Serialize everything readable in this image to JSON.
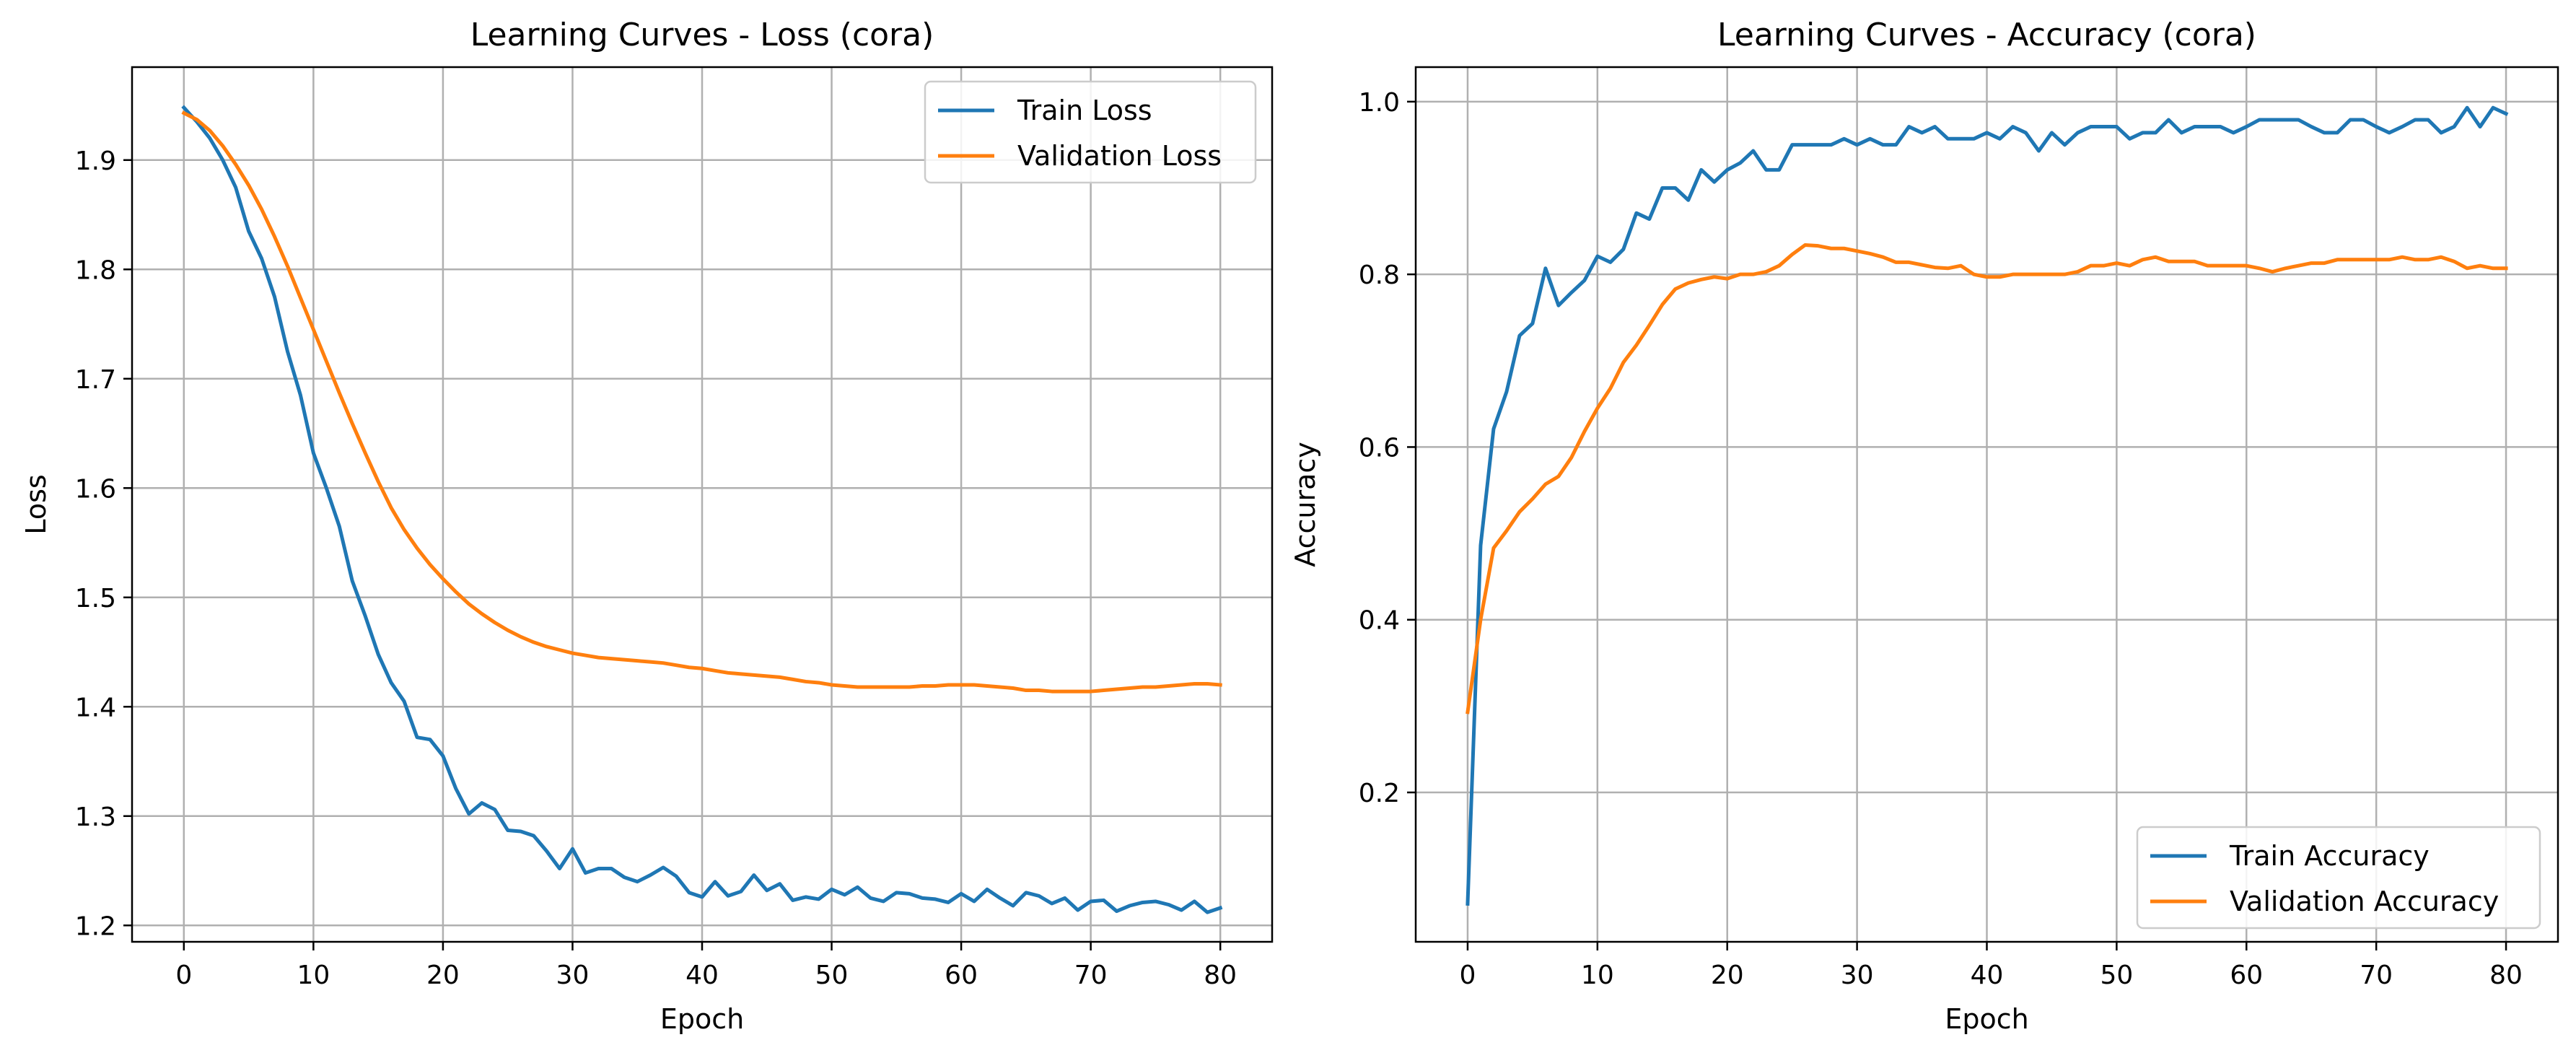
{
  "chart_data": [
    {
      "type": "line",
      "title": "Learning Curves - Loss (cora)",
      "xlabel": "Epoch",
      "ylabel": "Loss",
      "xlim": [
        -4,
        84
      ],
      "ylim": [
        1.185,
        1.985
      ],
      "xticks": [
        0,
        10,
        20,
        30,
        40,
        50,
        60,
        70,
        80
      ],
      "yticks": [
        1.2,
        1.3,
        1.4,
        1.5,
        1.6,
        1.7,
        1.8,
        1.9
      ],
      "ytick_labels": [
        "1.2",
        "1.3",
        "1.4",
        "1.5",
        "1.6",
        "1.7",
        "1.8",
        "1.9"
      ],
      "grid": true,
      "legend_position": "upper right",
      "x": [
        0,
        1,
        2,
        3,
        4,
        5,
        6,
        7,
        8,
        9,
        10,
        11,
        12,
        13,
        14,
        15,
        16,
        17,
        18,
        19,
        20,
        21,
        22,
        23,
        24,
        25,
        26,
        27,
        28,
        29,
        30,
        31,
        32,
        33,
        34,
        35,
        36,
        37,
        38,
        39,
        40,
        41,
        42,
        43,
        44,
        45,
        46,
        47,
        48,
        49,
        50,
        51,
        52,
        53,
        54,
        55,
        56,
        57,
        58,
        59,
        60,
        61,
        62,
        63,
        64,
        65,
        66,
        67,
        68,
        69,
        70,
        71,
        72,
        73,
        74,
        75,
        76,
        77,
        78,
        79,
        80
      ],
      "series": [
        {
          "name": "Train Loss",
          "color": "#1f77b4",
          "values": [
            1.948,
            1.935,
            1.92,
            1.9,
            1.875,
            1.835,
            1.81,
            1.775,
            1.725,
            1.685,
            1.632,
            1.6,
            1.565,
            1.515,
            1.483,
            1.448,
            1.422,
            1.405,
            1.372,
            1.37,
            1.355,
            1.325,
            1.302,
            1.312,
            1.306,
            1.287,
            1.286,
            1.282,
            1.268,
            1.252,
            1.27,
            1.248,
            1.252,
            1.252,
            1.244,
            1.24,
            1.246,
            1.253,
            1.245,
            1.23,
            1.226,
            1.24,
            1.227,
            1.231,
            1.246,
            1.232,
            1.238,
            1.223,
            1.226,
            1.224,
            1.233,
            1.228,
            1.235,
            1.225,
            1.222,
            1.23,
            1.229,
            1.225,
            1.224,
            1.221,
            1.229,
            1.222,
            1.233,
            1.225,
            1.218,
            1.23,
            1.227,
            1.22,
            1.225,
            1.214,
            1.222,
            1.223,
            1.213,
            1.218,
            1.221,
            1.222,
            1.219,
            1.214,
            1.222,
            1.212,
            1.216
          ]
        },
        {
          "name": "Validation Loss",
          "color": "#ff7f0e",
          "values": [
            1.943,
            1.937,
            1.927,
            1.913,
            1.896,
            1.877,
            1.855,
            1.83,
            1.803,
            1.774,
            1.745,
            1.716,
            1.687,
            1.659,
            1.632,
            1.606,
            1.582,
            1.562,
            1.545,
            1.53,
            1.517,
            1.505,
            1.494,
            1.485,
            1.477,
            1.47,
            1.464,
            1.459,
            1.455,
            1.452,
            1.449,
            1.447,
            1.445,
            1.444,
            1.443,
            1.442,
            1.441,
            1.44,
            1.438,
            1.436,
            1.435,
            1.433,
            1.431,
            1.43,
            1.429,
            1.428,
            1.427,
            1.425,
            1.423,
            1.422,
            1.42,
            1.419,
            1.418,
            1.418,
            1.418,
            1.418,
            1.418,
            1.419,
            1.419,
            1.42,
            1.42,
            1.42,
            1.419,
            1.418,
            1.417,
            1.415,
            1.415,
            1.414,
            1.414,
            1.414,
            1.414,
            1.415,
            1.416,
            1.417,
            1.418,
            1.418,
            1.419,
            1.42,
            1.421,
            1.421,
            1.42
          ]
        }
      ]
    },
    {
      "type": "line",
      "title": "Learning Curves - Accuracy (cora)",
      "xlabel": "Epoch",
      "ylabel": "Accuracy",
      "xlim": [
        -4,
        84
      ],
      "ylim": [
        0.027,
        1.04
      ],
      "xticks": [
        0,
        10,
        20,
        30,
        40,
        50,
        60,
        70,
        80
      ],
      "yticks": [
        0.2,
        0.4,
        0.6,
        0.8,
        1.0
      ],
      "ytick_labels": [
        "0.2",
        "0.4",
        "0.6",
        "0.8",
        "1.0"
      ],
      "grid": true,
      "legend_position": "lower right",
      "x": [
        0,
        1,
        2,
        3,
        4,
        5,
        6,
        7,
        8,
        9,
        10,
        11,
        12,
        13,
        14,
        15,
        16,
        17,
        18,
        19,
        20,
        21,
        22,
        23,
        24,
        25,
        26,
        27,
        28,
        29,
        30,
        31,
        32,
        33,
        34,
        35,
        36,
        37,
        38,
        39,
        40,
        41,
        42,
        43,
        44,
        45,
        46,
        47,
        48,
        49,
        50,
        51,
        52,
        53,
        54,
        55,
        56,
        57,
        58,
        59,
        60,
        61,
        62,
        63,
        64,
        65,
        66,
        67,
        68,
        69,
        70,
        71,
        72,
        73,
        74,
        75,
        76,
        77,
        78,
        79,
        80
      ],
      "series": [
        {
          "name": "Train Accuracy",
          "color": "#1f77b4",
          "values": [
            0.071,
            0.486,
            0.621,
            0.664,
            0.729,
            0.743,
            0.807,
            0.764,
            0.779,
            0.793,
            0.821,
            0.814,
            0.829,
            0.871,
            0.864,
            0.9,
            0.9,
            0.886,
            0.921,
            0.907,
            0.921,
            0.929,
            0.943,
            0.921,
            0.921,
            0.95,
            0.95,
            0.95,
            0.95,
            0.957,
            0.95,
            0.957,
            0.95,
            0.95,
            0.971,
            0.964,
            0.971,
            0.957,
            0.957,
            0.957,
            0.964,
            0.957,
            0.971,
            0.964,
            0.943,
            0.964,
            0.95,
            0.964,
            0.971,
            0.971,
            0.971,
            0.957,
            0.964,
            0.964,
            0.979,
            0.964,
            0.971,
            0.971,
            0.971,
            0.964,
            0.971,
            0.979,
            0.979,
            0.979,
            0.979,
            0.971,
            0.964,
            0.964,
            0.979,
            0.979,
            0.971,
            0.964,
            0.971,
            0.979,
            0.979,
            0.964,
            0.971,
            0.993,
            0.971,
            0.993,
            0.986
          ]
        },
        {
          "name": "Validation Accuracy",
          "color": "#ff7f0e",
          "values": [
            0.293,
            0.4,
            0.483,
            0.503,
            0.525,
            0.54,
            0.557,
            0.566,
            0.588,
            0.618,
            0.645,
            0.668,
            0.698,
            0.718,
            0.741,
            0.765,
            0.783,
            0.79,
            0.794,
            0.797,
            0.795,
            0.8,
            0.8,
            0.803,
            0.81,
            0.823,
            0.834,
            0.833,
            0.83,
            0.83,
            0.827,
            0.824,
            0.82,
            0.814,
            0.814,
            0.811,
            0.808,
            0.807,
            0.81,
            0.8,
            0.797,
            0.797,
            0.8,
            0.8,
            0.8,
            0.8,
            0.8,
            0.803,
            0.81,
            0.81,
            0.813,
            0.81,
            0.817,
            0.82,
            0.815,
            0.815,
            0.815,
            0.81,
            0.81,
            0.81,
            0.81,
            0.807,
            0.803,
            0.807,
            0.81,
            0.813,
            0.813,
            0.817,
            0.817,
            0.817,
            0.817,
            0.817,
            0.82,
            0.817,
            0.817,
            0.82,
            0.815,
            0.807,
            0.81,
            0.807,
            0.807
          ]
        }
      ]
    }
  ]
}
